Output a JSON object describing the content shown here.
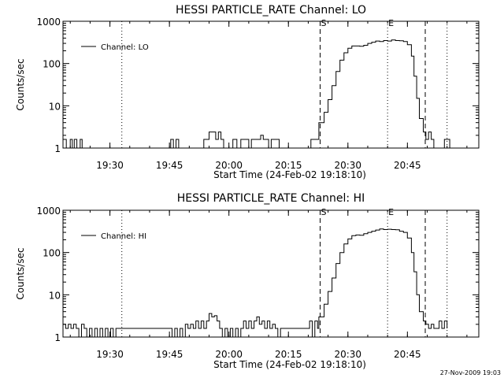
{
  "footer_timestamp": "27-Nov-2009 19:03",
  "colors": {
    "background": "#ffffff",
    "foreground": "#000000"
  },
  "chart_data": [
    {
      "type": "line",
      "title": "HESSI PARTICLE_RATE Channel: LO",
      "xlabel": "Start Time (24-Feb-02 19:18:10)",
      "ylabel": "Counts/sec",
      "yscale": "log",
      "ylim": [
        1,
        1000
      ],
      "xlim": [
        "19:18:10",
        "21:03:00"
      ],
      "x_ticks": [
        "19:30",
        "19:45",
        "20:00",
        "20:15",
        "20:30",
        "20:45"
      ],
      "y_ticks": [
        "1",
        "10",
        "100",
        "1000"
      ],
      "legend": {
        "position": "top-left",
        "entries": [
          "Channel: LO"
        ]
      },
      "markers": [
        {
          "label": "S",
          "time": "20:23:00",
          "style": "dashed"
        },
        {
          "label": "E",
          "time": "20:40:00",
          "style": "dotted"
        },
        {
          "label": "",
          "time": "19:33:00",
          "style": "dotted"
        },
        {
          "label": "",
          "time": "20:49:30",
          "style": "dashed"
        },
        {
          "label": "",
          "time": "20:55:00",
          "style": "dotted"
        }
      ],
      "series": [
        {
          "name": "Channel: LO",
          "points": [
            [
              "19:18:10",
              1.6
            ],
            [
              "19:19:00",
              1.0
            ],
            [
              "19:20:00",
              1.6
            ],
            [
              "19:20:30",
              1.0
            ],
            [
              "19:21:00",
              1.6
            ],
            [
              "19:21:40",
              1.0
            ],
            [
              "19:22:30",
              1.6
            ],
            [
              "19:23:00",
              1.0
            ],
            [
              "19:44:30",
              1.0
            ],
            [
              "19:45:20",
              1.6
            ],
            [
              "19:46:00",
              1.0
            ],
            [
              "19:46:40",
              1.6
            ],
            [
              "19:47:20",
              1.0
            ],
            [
              "19:48:00",
              1.0
            ],
            [
              "19:53:00",
              1.0
            ],
            [
              "19:53:40",
              1.6
            ],
            [
              "19:54:20",
              1.6
            ],
            [
              "19:55:00",
              2.4
            ],
            [
              "19:56:00",
              2.4
            ],
            [
              "19:56:40",
              1.6
            ],
            [
              "19:57:20",
              2.4
            ],
            [
              "19:58:00",
              1.6
            ],
            [
              "19:58:40",
              1.0
            ],
            [
              "20:00:00",
              1.0
            ],
            [
              "20:01:00",
              1.6
            ],
            [
              "20:02:00",
              1.0
            ],
            [
              "20:03:00",
              1.6
            ],
            [
              "20:04:30",
              1.6
            ],
            [
              "20:05:00",
              1.0
            ],
            [
              "20:05:40",
              1.6
            ],
            [
              "20:07:00",
              1.6
            ],
            [
              "20:08:00",
              2.0
            ],
            [
              "20:08:40",
              1.6
            ],
            [
              "20:09:20",
              1.6
            ],
            [
              "20:10:00",
              1.0
            ],
            [
              "20:10:40",
              1.6
            ],
            [
              "20:12:00",
              1.6
            ],
            [
              "20:12:40",
              1.0
            ],
            [
              "20:20:00",
              1.0
            ],
            [
              "20:20:40",
              1.6
            ],
            [
              "20:21:20",
              1.6
            ],
            [
              "20:22:00",
              1.6
            ],
            [
              "20:22:40",
              4
            ],
            [
              "20:24:00",
              7
            ],
            [
              "20:25:00",
              14
            ],
            [
              "20:26:00",
              30
            ],
            [
              "20:27:00",
              65
            ],
            [
              "20:28:00",
              120
            ],
            [
              "20:29:00",
              180
            ],
            [
              "20:30:00",
              230
            ],
            [
              "20:31:00",
              260
            ],
            [
              "20:32:00",
              260
            ],
            [
              "20:33:00",
              255
            ],
            [
              "20:34:00",
              270
            ],
            [
              "20:35:00",
              300
            ],
            [
              "20:36:00",
              320
            ],
            [
              "20:37:00",
              340
            ],
            [
              "20:38:00",
              330
            ],
            [
              "20:39:00",
              350
            ],
            [
              "20:40:00",
              340
            ],
            [
              "20:41:00",
              360
            ],
            [
              "20:42:00",
              350
            ],
            [
              "20:43:00",
              345
            ],
            [
              "20:44:00",
              330
            ],
            [
              "20:45:00",
              280
            ],
            [
              "20:46:00",
              150
            ],
            [
              "20:46:40",
              50
            ],
            [
              "20:47:20",
              15
            ],
            [
              "20:48:00",
              5
            ],
            [
              "20:49:00",
              2.4
            ],
            [
              "20:49:40",
              1.6
            ],
            [
              "20:50:20",
              2.4
            ],
            [
              "20:51:00",
              1.6
            ],
            [
              "20:51:40",
              1.0
            ],
            [
              "20:53:40",
              1.0
            ],
            [
              "20:54:20",
              1.6
            ],
            [
              "20:55:00",
              1.6
            ],
            [
              "20:55:40",
              1.0
            ]
          ]
        }
      ]
    },
    {
      "type": "line",
      "title": "HESSI PARTICLE_RATE Channel: HI",
      "xlabel": "Start Time (24-Feb-02 19:18:10)",
      "ylabel": "Counts/sec",
      "yscale": "log",
      "ylim": [
        1,
        1000
      ],
      "xlim": [
        "19:18:10",
        "21:03:00"
      ],
      "x_ticks": [
        "19:30",
        "19:45",
        "20:00",
        "20:15",
        "20:30",
        "20:45"
      ],
      "y_ticks": [
        "1",
        "10",
        "100",
        "1000"
      ],
      "legend": {
        "position": "top-left",
        "entries": [
          "Channel: HI"
        ]
      },
      "markers": [
        {
          "label": "S",
          "time": "20:23:00",
          "style": "dashed"
        },
        {
          "label": "E",
          "time": "20:40:00",
          "style": "dotted"
        },
        {
          "label": "",
          "time": "19:33:00",
          "style": "dotted"
        },
        {
          "label": "",
          "time": "20:49:30",
          "style": "dashed"
        },
        {
          "label": "",
          "time": "20:55:00",
          "style": "dotted"
        }
      ],
      "series": [
        {
          "name": "Channel: HI",
          "points": [
            [
              "19:18:10",
              2.0
            ],
            [
              "19:18:50",
              1.6
            ],
            [
              "19:19:30",
              2.0
            ],
            [
              "19:20:10",
              1.6
            ],
            [
              "19:20:50",
              2.0
            ],
            [
              "19:21:30",
              1.6
            ],
            [
              "19:22:10",
              1.0
            ],
            [
              "19:22:50",
              2.0
            ],
            [
              "19:23:30",
              1.6
            ],
            [
              "19:24:10",
              1.0
            ],
            [
              "19:24:50",
              1.6
            ],
            [
              "19:25:30",
              1.0
            ],
            [
              "19:26:10",
              1.6
            ],
            [
              "19:26:50",
              1.0
            ],
            [
              "19:27:30",
              1.6
            ],
            [
              "19:28:10",
              1.0
            ],
            [
              "19:28:50",
              1.6
            ],
            [
              "19:29:30",
              1.0
            ],
            [
              "19:30:10",
              1.6
            ],
            [
              "19:30:50",
              1.0
            ],
            [
              "19:31:30",
              1.6
            ],
            [
              "19:45:00",
              1.6
            ],
            [
              "19:45:40",
              1.0
            ],
            [
              "19:46:20",
              1.6
            ],
            [
              "19:47:00",
              1.0
            ],
            [
              "19:47:40",
              1.6
            ],
            [
              "19:48:20",
              1.0
            ],
            [
              "19:49:00",
              2.0
            ],
            [
              "19:49:40",
              1.6
            ],
            [
              "19:50:20",
              2.0
            ],
            [
              "19:51:00",
              1.6
            ],
            [
              "19:51:40",
              2.4
            ],
            [
              "19:52:20",
              1.6
            ],
            [
              "19:53:00",
              2.4
            ],
            [
              "19:53:40",
              1.6
            ],
            [
              "19:54:20",
              2.4
            ],
            [
              "19:55:00",
              3.6
            ],
            [
              "19:55:40",
              3.0
            ],
            [
              "19:56:20",
              3.2
            ],
            [
              "19:57:00",
              2.4
            ],
            [
              "19:57:40",
              1.6
            ],
            [
              "19:58:20",
              1.0
            ],
            [
              "19:59:00",
              1.6
            ],
            [
              "19:59:40",
              1.0
            ],
            [
              "20:00:20",
              1.6
            ],
            [
              "20:01:00",
              1.0
            ],
            [
              "20:01:40",
              1.6
            ],
            [
              "20:02:20",
              1.0
            ],
            [
              "20:03:00",
              1.6
            ],
            [
              "20:03:40",
              2.4
            ],
            [
              "20:04:20",
              1.6
            ],
            [
              "20:05:00",
              2.4
            ],
            [
              "20:05:40",
              1.6
            ],
            [
              "20:06:20",
              2.4
            ],
            [
              "20:07:00",
              3.0
            ],
            [
              "20:07:40",
              2.0
            ],
            [
              "20:08:20",
              2.4
            ],
            [
              "20:09:00",
              1.6
            ],
            [
              "20:09:40",
              2.4
            ],
            [
              "20:10:20",
              1.6
            ],
            [
              "20:11:00",
              2.0
            ],
            [
              "20:11:40",
              1.6
            ],
            [
              "20:12:20",
              1.0
            ],
            [
              "20:13:00",
              1.6
            ],
            [
              "20:19:40",
              1.6
            ],
            [
              "20:20:20",
              2.4
            ],
            [
              "20:21:00",
              1.0
            ],
            [
              "20:21:40",
              2.4
            ],
            [
              "20:22:20",
              1.6
            ],
            [
              "20:22:40",
              3
            ],
            [
              "20:24:00",
              6
            ],
            [
              "20:25:00",
              12
            ],
            [
              "20:26:00",
              25
            ],
            [
              "20:27:00",
              55
            ],
            [
              "20:28:00",
              100
            ],
            [
              "20:29:00",
              160
            ],
            [
              "20:30:00",
              210
            ],
            [
              "20:31:00",
              250
            ],
            [
              "20:32:00",
              260
            ],
            [
              "20:33:00",
              255
            ],
            [
              "20:34:00",
              280
            ],
            [
              "20:35:00",
              300
            ],
            [
              "20:36:00",
              320
            ],
            [
              "20:37:00",
              340
            ],
            [
              "20:38:00",
              360
            ],
            [
              "20:39:00",
              350
            ],
            [
              "20:40:00",
              355
            ],
            [
              "20:41:00",
              350
            ],
            [
              "20:42:00",
              345
            ],
            [
              "20:43:00",
              320
            ],
            [
              "20:44:00",
              300
            ],
            [
              "20:45:00",
              220
            ],
            [
              "20:46:00",
              100
            ],
            [
              "20:46:40",
              35
            ],
            [
              "20:47:20",
              10
            ],
            [
              "20:48:00",
              4
            ],
            [
              "20:49:00",
              2.4
            ],
            [
              "20:49:40",
              2.0
            ],
            [
              "20:50:20",
              1.6
            ],
            [
              "20:51:00",
              2.0
            ],
            [
              "20:51:40",
              1.6
            ],
            [
              "20:52:20",
              1.6
            ],
            [
              "20:53:00",
              2.4
            ],
            [
              "20:53:40",
              1.6
            ],
            [
              "20:54:20",
              2.4
            ],
            [
              "20:55:00",
              1.6
            ]
          ]
        }
      ]
    }
  ]
}
